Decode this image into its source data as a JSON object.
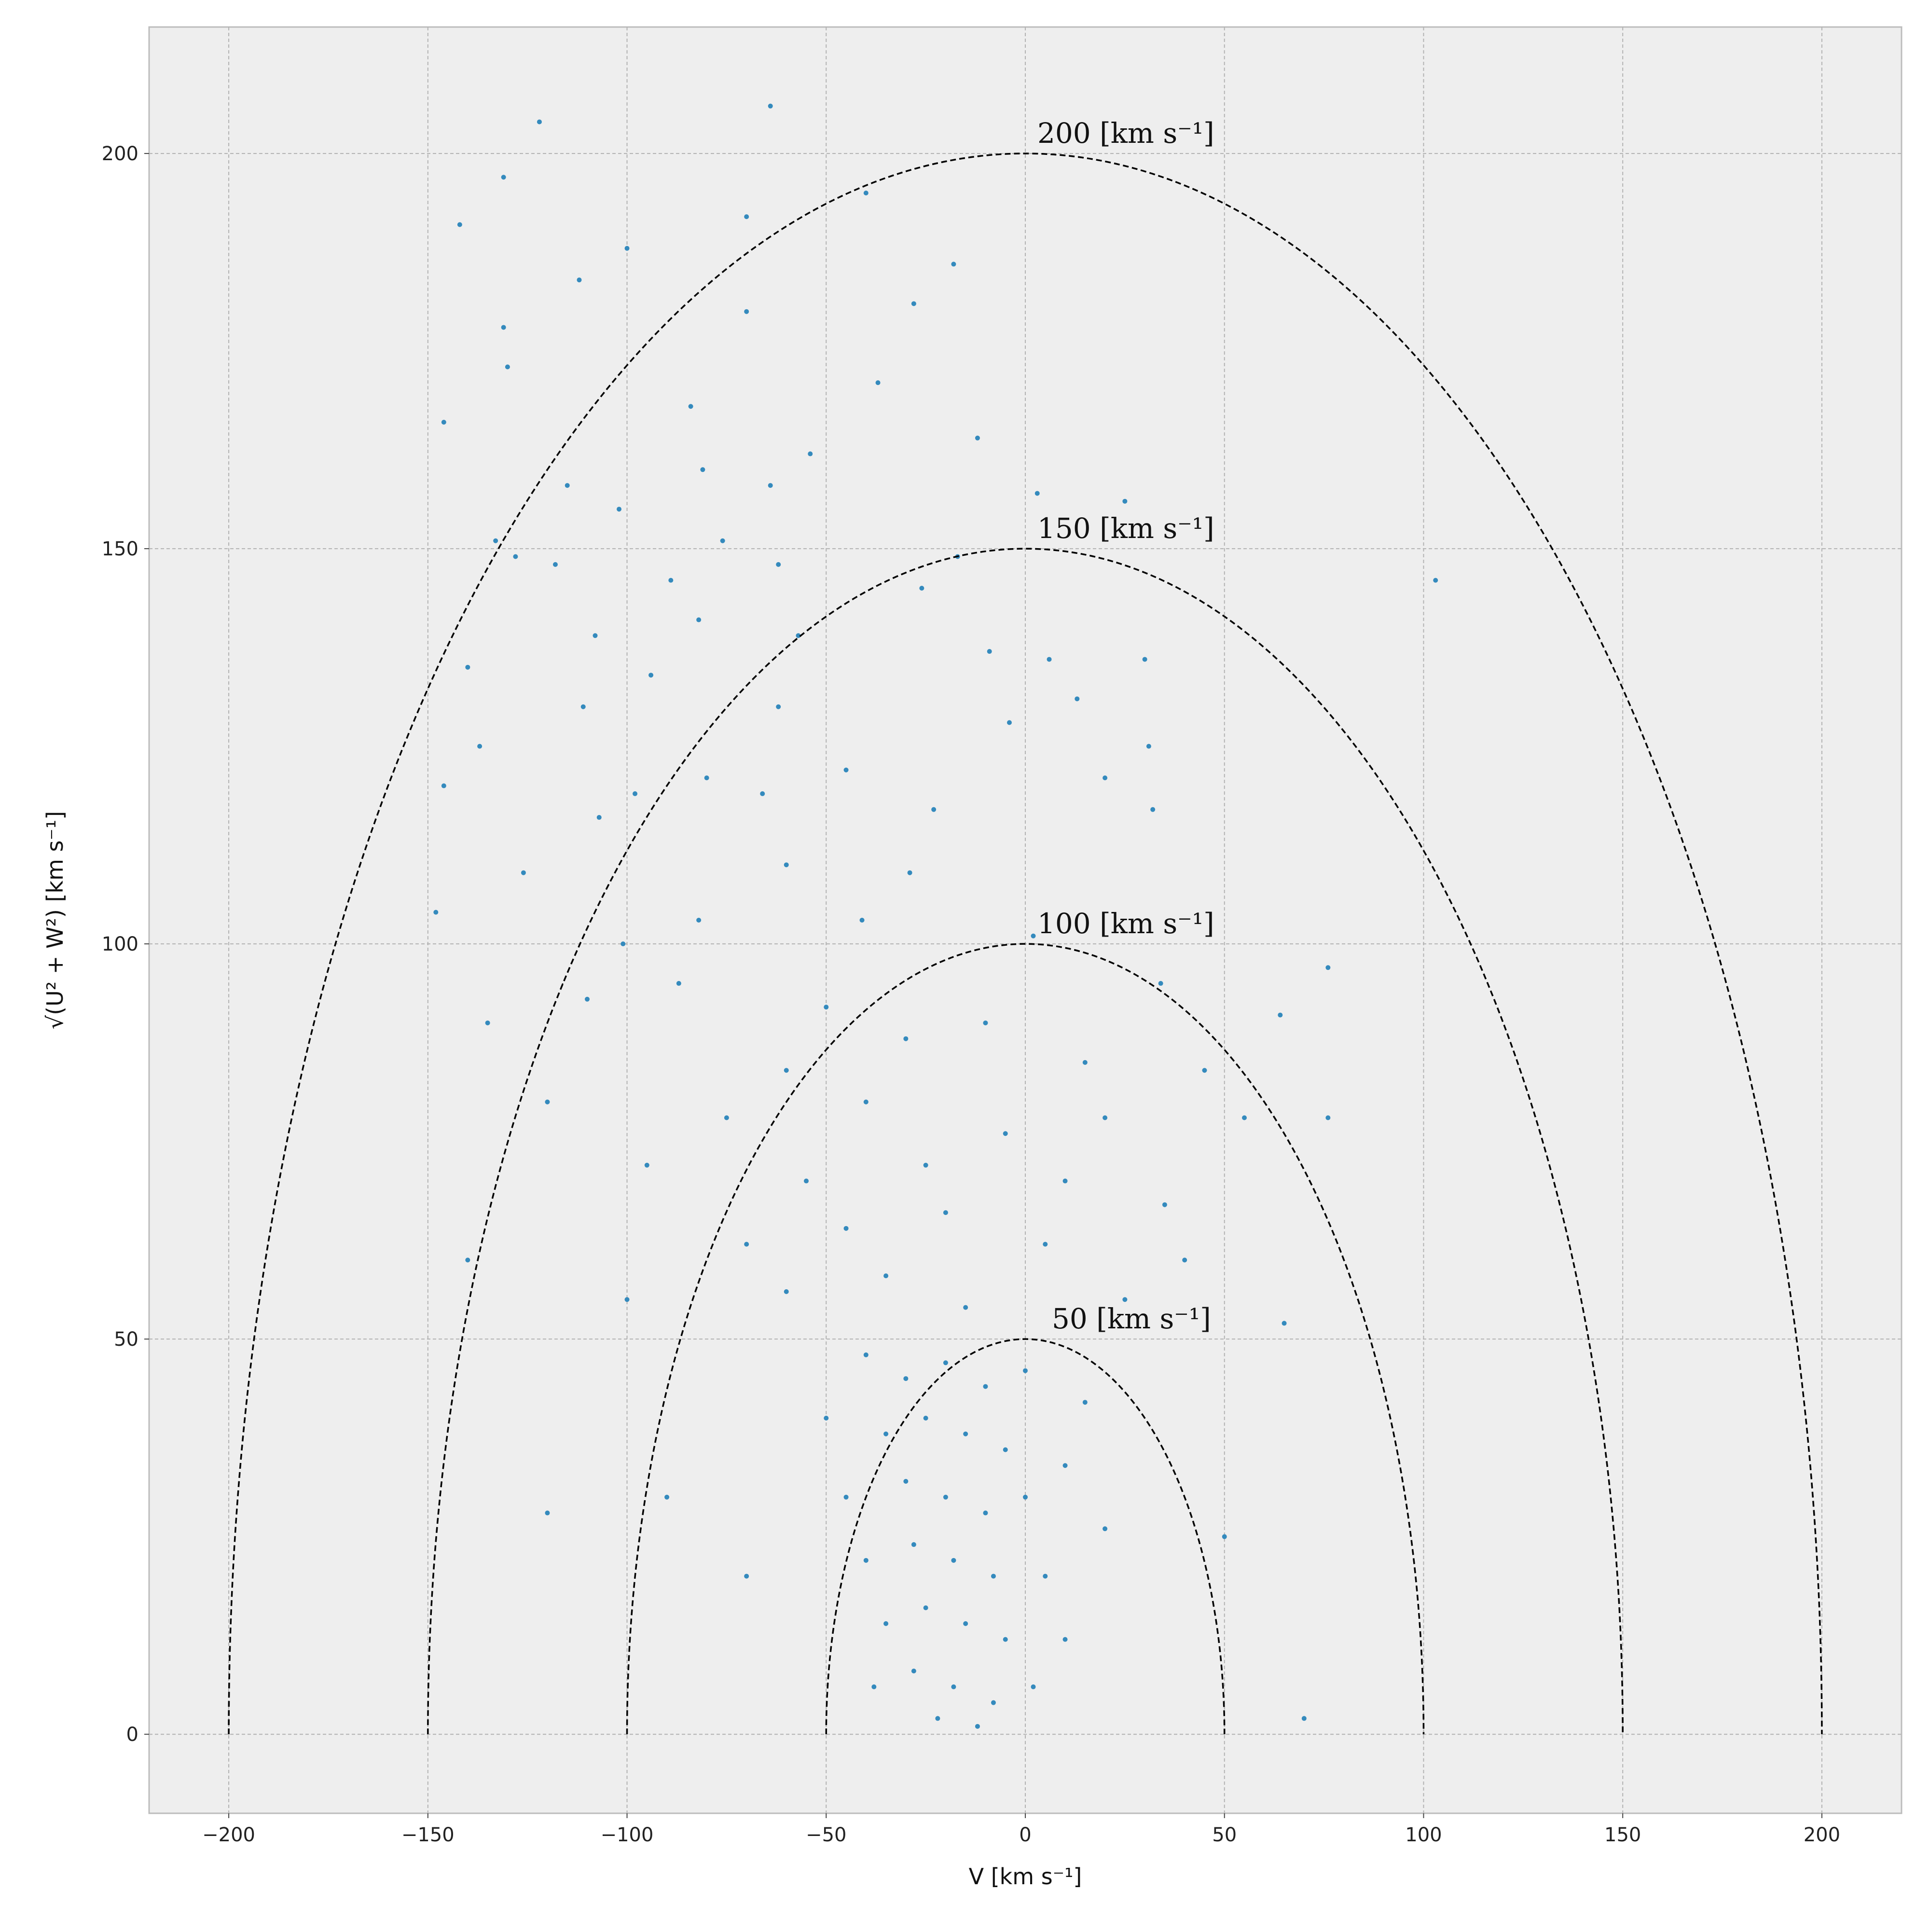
{
  "chart_data": {
    "type": "scatter",
    "xlabel": "V [km s⁻¹]",
    "ylabel": "√(U² + W²) [km s⁻¹]",
    "xlim": [
      -220,
      220
    ],
    "ylim": [
      -10,
      216
    ],
    "xticks": [
      {
        "value": -200,
        "label": "−200"
      },
      {
        "value": -150,
        "label": "−150"
      },
      {
        "value": -100,
        "label": "−100"
      },
      {
        "value": -50,
        "label": "−50"
      },
      0,
      50,
      100,
      150,
      200
    ],
    "yticks": [
      0,
      50,
      100,
      150,
      200
    ],
    "grid": true,
    "color": "#348abd",
    "background": "#eeeeee",
    "circles": [
      50,
      100,
      150,
      200
    ],
    "circle_labels": [
      "50 [km s⁻¹]",
      "100 [km s⁻¹]",
      "150 [km s⁻¹]",
      "200 [km s⁻¹]"
    ],
    "x": [
      -122,
      -64,
      -131,
      -142,
      -70,
      -40,
      -100,
      -18,
      -112,
      -28,
      -131,
      -70,
      -130,
      -37,
      -146,
      -84,
      -12,
      -54,
      -81,
      -64,
      3,
      25,
      -115,
      -102,
      -133,
      -76,
      103,
      -128,
      -118,
      -89,
      -62,
      -17,
      -26,
      -82,
      -57,
      -108,
      -9,
      30,
      6,
      -140,
      -94,
      13,
      -111,
      -62,
      -4,
      -137,
      -80,
      -45,
      31,
      20,
      -146,
      -98,
      -66,
      -23,
      -107,
      32,
      -126,
      -60,
      -29,
      -148,
      -101,
      -82,
      -41,
      2,
      76,
      34,
      64,
      -135,
      -110,
      -87,
      -50,
      -30,
      -10,
      15,
      45,
      -60,
      -120,
      -75,
      -40,
      -5,
      20,
      55,
      76,
      -95,
      -55,
      -25,
      10,
      35,
      -140,
      -70,
      -45,
      -20,
      5,
      40,
      -100,
      -60,
      -35,
      -15,
      25,
      65,
      -40,
      -30,
      -20,
      -10,
      0,
      15,
      -50,
      -35,
      -25,
      -15,
      -5,
      10,
      -45,
      -30,
      -20,
      -10,
      0,
      20,
      -40,
      -28,
      -18,
      -8,
      5,
      -35,
      -25,
      -15,
      -5,
      10,
      -38,
      -28,
      -18,
      -8,
      2,
      -22,
      -12,
      70,
      -70,
      -90,
      -120,
      50
    ],
    "values": [
      204,
      206,
      197,
      191,
      192,
      195,
      188,
      186,
      184,
      181,
      178,
      180,
      173,
      171,
      166,
      168,
      164,
      162,
      160,
      158,
      157,
      156,
      158,
      155,
      151,
      151,
      146,
      149,
      148,
      146,
      148,
      149,
      145,
      141,
      139,
      139,
      137,
      136,
      136,
      135,
      134,
      131,
      130,
      130,
      128,
      125,
      121,
      122,
      125,
      121,
      120,
      119,
      119,
      117,
      116,
      117,
      109,
      110,
      109,
      104,
      100,
      103,
      103,
      101,
      97,
      95,
      91,
      90,
      93,
      95,
      92,
      88,
      90,
      85,
      84,
      84,
      80,
      78,
      80,
      76,
      78,
      78,
      78,
      72,
      70,
      72,
      70,
      67,
      60,
      62,
      64,
      66,
      62,
      60,
      55,
      56,
      58,
      54,
      55,
      52,
      48,
      45,
      47,
      44,
      46,
      42,
      40,
      38,
      40,
      38,
      36,
      34,
      30,
      32,
      30,
      28,
      30,
      26,
      22,
      24,
      22,
      20,
      20,
      14,
      16,
      14,
      12,
      12,
      6,
      8,
      6,
      4,
      6,
      2,
      1,
      2,
      20,
      30,
      28,
      25
    ]
  }
}
